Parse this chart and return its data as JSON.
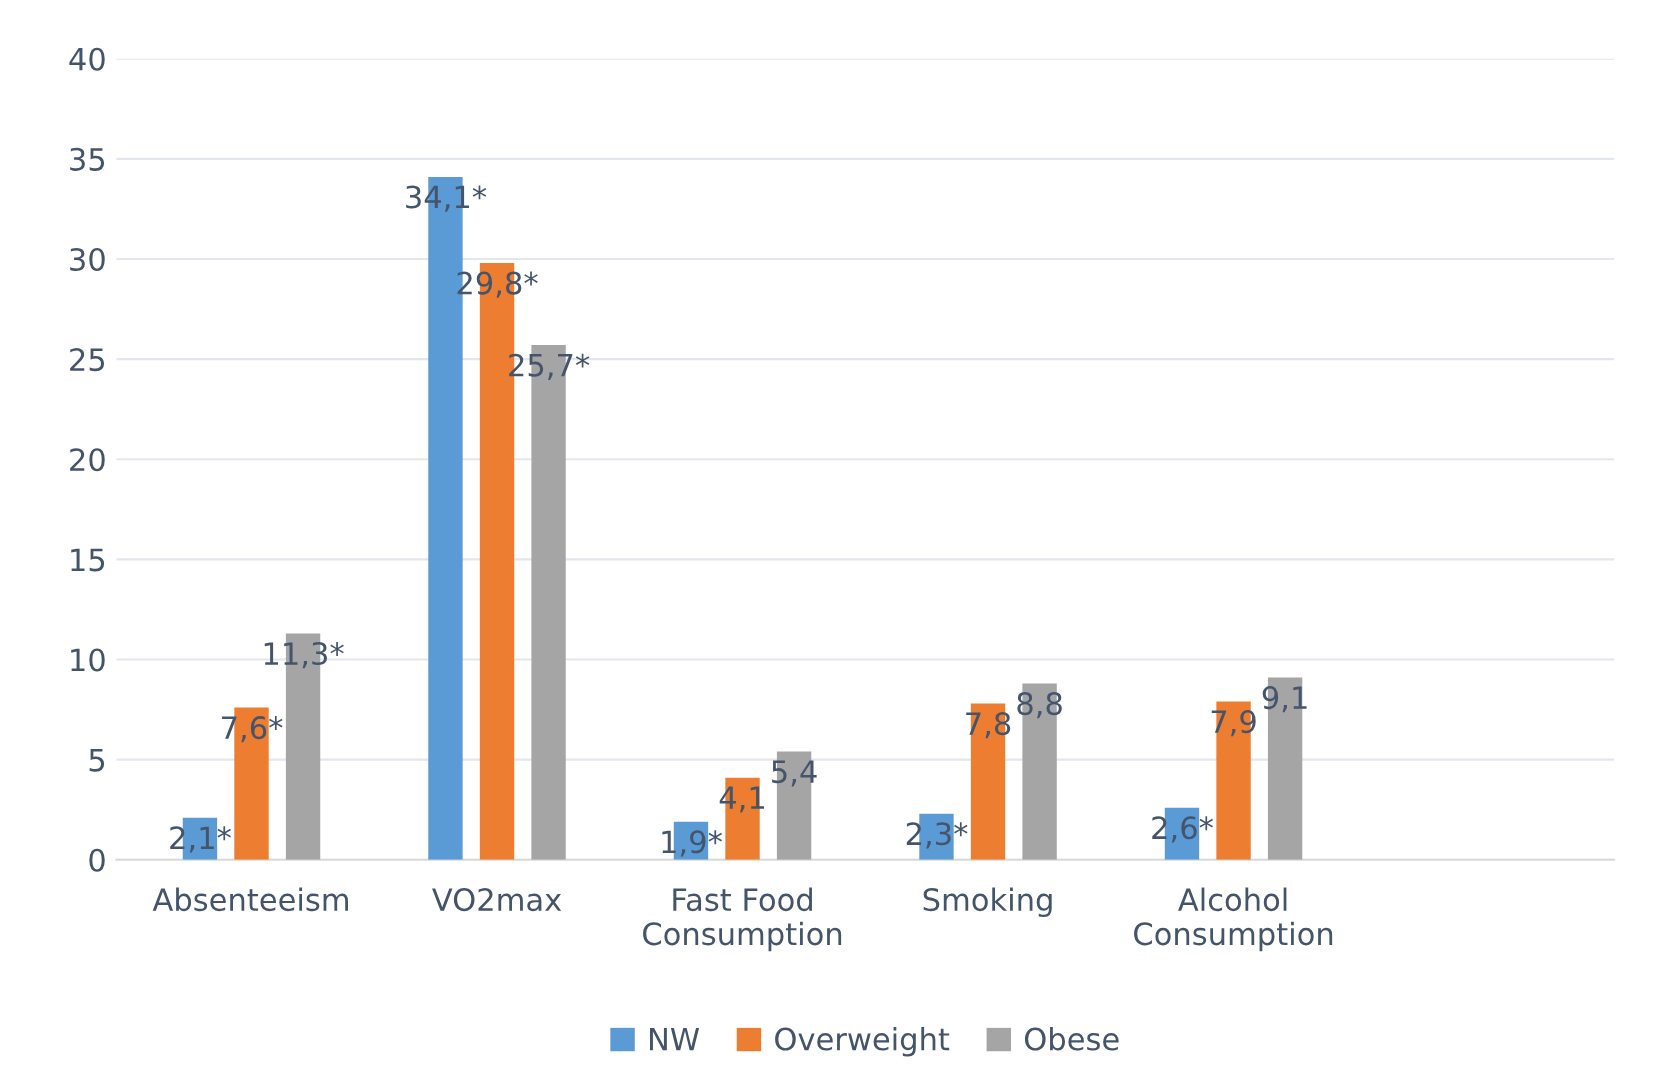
{
  "chart_data": {
    "type": "bar",
    "categories": [
      "Absenteeism",
      "VO2max",
      "Fast Food\nConsumption",
      "Smoking",
      "Alcohol\nConsumption",
      null
    ],
    "series": [
      {
        "name": "NW",
        "color": "#5b9bd5",
        "values": [
          2.1,
          34.1,
          1.9,
          2.3,
          2.6,
          null
        ],
        "value_labels": [
          "2,1*",
          "34,1*",
          "1,9*",
          "2,3*",
          "2,6*",
          null
        ]
      },
      {
        "name": "Overweight",
        "color": "#ed7d31",
        "values": [
          7.6,
          29.8,
          4.1,
          7.8,
          7.9,
          null
        ],
        "value_labels": [
          "7,6*",
          "29,8*",
          "4,1",
          "7,8",
          "7,9",
          null
        ]
      },
      {
        "name": "Obese",
        "color": "#a5a5a5",
        "values": [
          11.3,
          25.7,
          5.4,
          8.8,
          9.1,
          null
        ],
        "value_labels": [
          "11,3*",
          "25,7*",
          "5,4",
          "8,8",
          "9,1",
          null
        ]
      }
    ],
    "ylim": [
      0,
      40
    ],
    "yticks": [
      0,
      5,
      10,
      15,
      20,
      25,
      30,
      35,
      40
    ],
    "grid": "y",
    "legend": "bottom"
  }
}
